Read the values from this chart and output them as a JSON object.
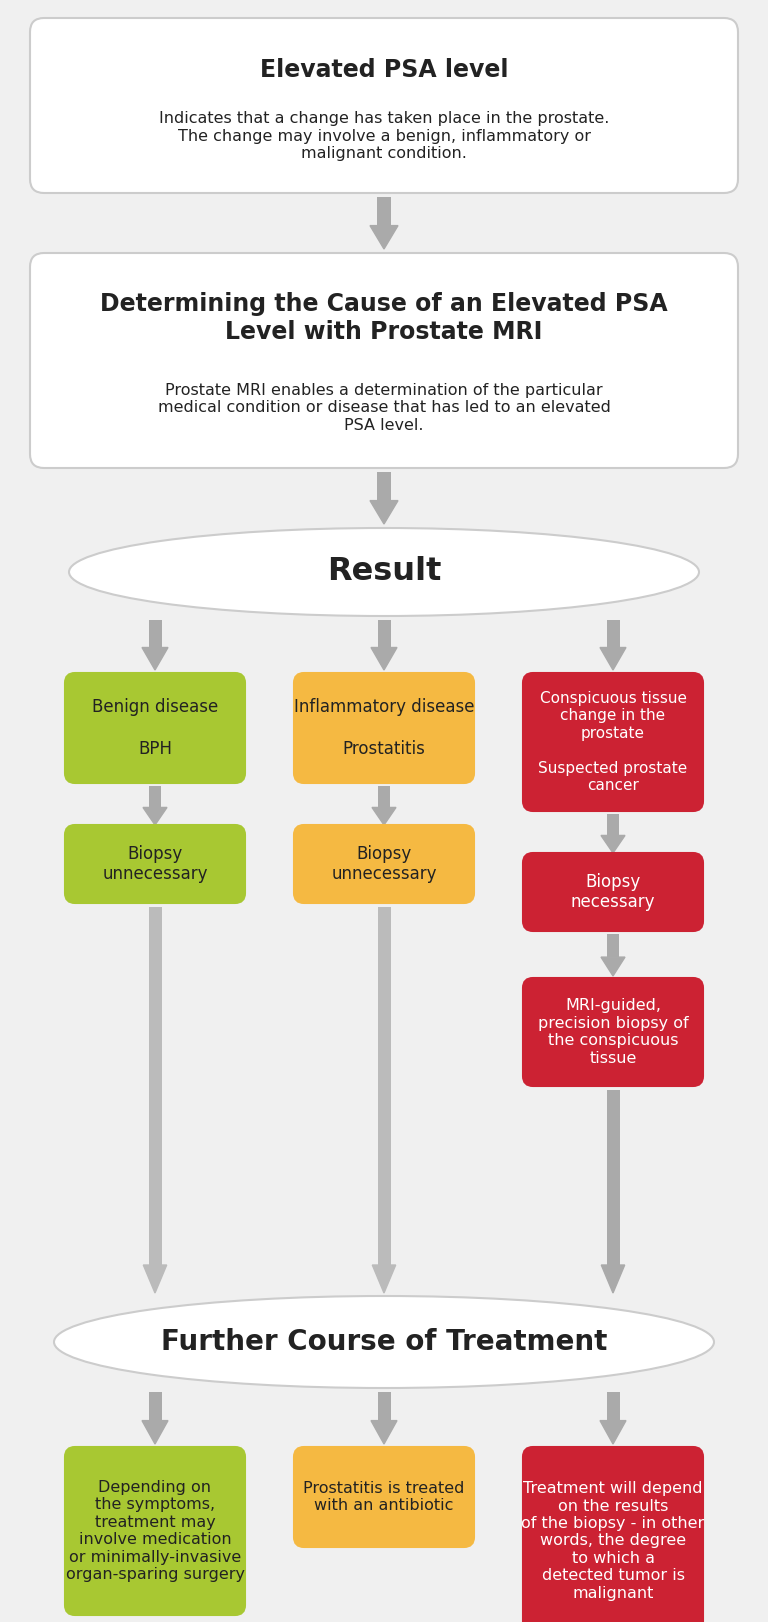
{
  "bg_color": "#f0f0f0",
  "white_box_color": "#ffffff",
  "white_box_border": "#cccccc",
  "green_color": "#a8c832",
  "orange_color": "#f5b942",
  "red_color": "#cc2233",
  "arrow_color": "#aaaaaa",
  "text_dark": "#222222",
  "text_white": "#ffffff",
  "box1_title": "Elevated PSA level",
  "box1_body": "Indicates that a change has taken place in the prostate.\nThe change may involve a benign, inflammatory or\nmalignant condition.",
  "box2_title": "Determining the Cause of an Elevated PSA\nLevel with Prostate MRI",
  "box2_body": "Prostate MRI enables a determination of the particular\nmedical condition or disease that has led to an elevated\nPSA level.",
  "ellipse1_text": "Result",
  "ellipse2_text": "Further Course of Treatment",
  "col1_box1_text": "Benign disease\n\nBPH",
  "col2_box1_text": "Inflammatory disease\n\nProstatitis",
  "col3_box1_text": "Conspicuous tissue\nchange in the\nprostate\n\nSuspected prostate\ncancer",
  "col1_box2_text": "Biopsy\nunnecessary",
  "col2_box2_text": "Biopsy\nunnecessary",
  "col3_box2_text": "Biopsy\nnecessary",
  "col3_box3_text": "MRI-guided,\nprecision biopsy of\nthe conspicuous\ntissue",
  "col1_final_text": "Depending on\nthe symptoms,\ntreatment may\ninvolve medication\nor minimally-invasive\norgan-sparing surgery",
  "col2_final_text": "Prostatitis is treated\nwith an antibiotic",
  "col3_final_text": "Treatment will depend\non the results\nof the biopsy - in other\nwords, the degree\nto which a\ndetected tumor is\nmalignant"
}
